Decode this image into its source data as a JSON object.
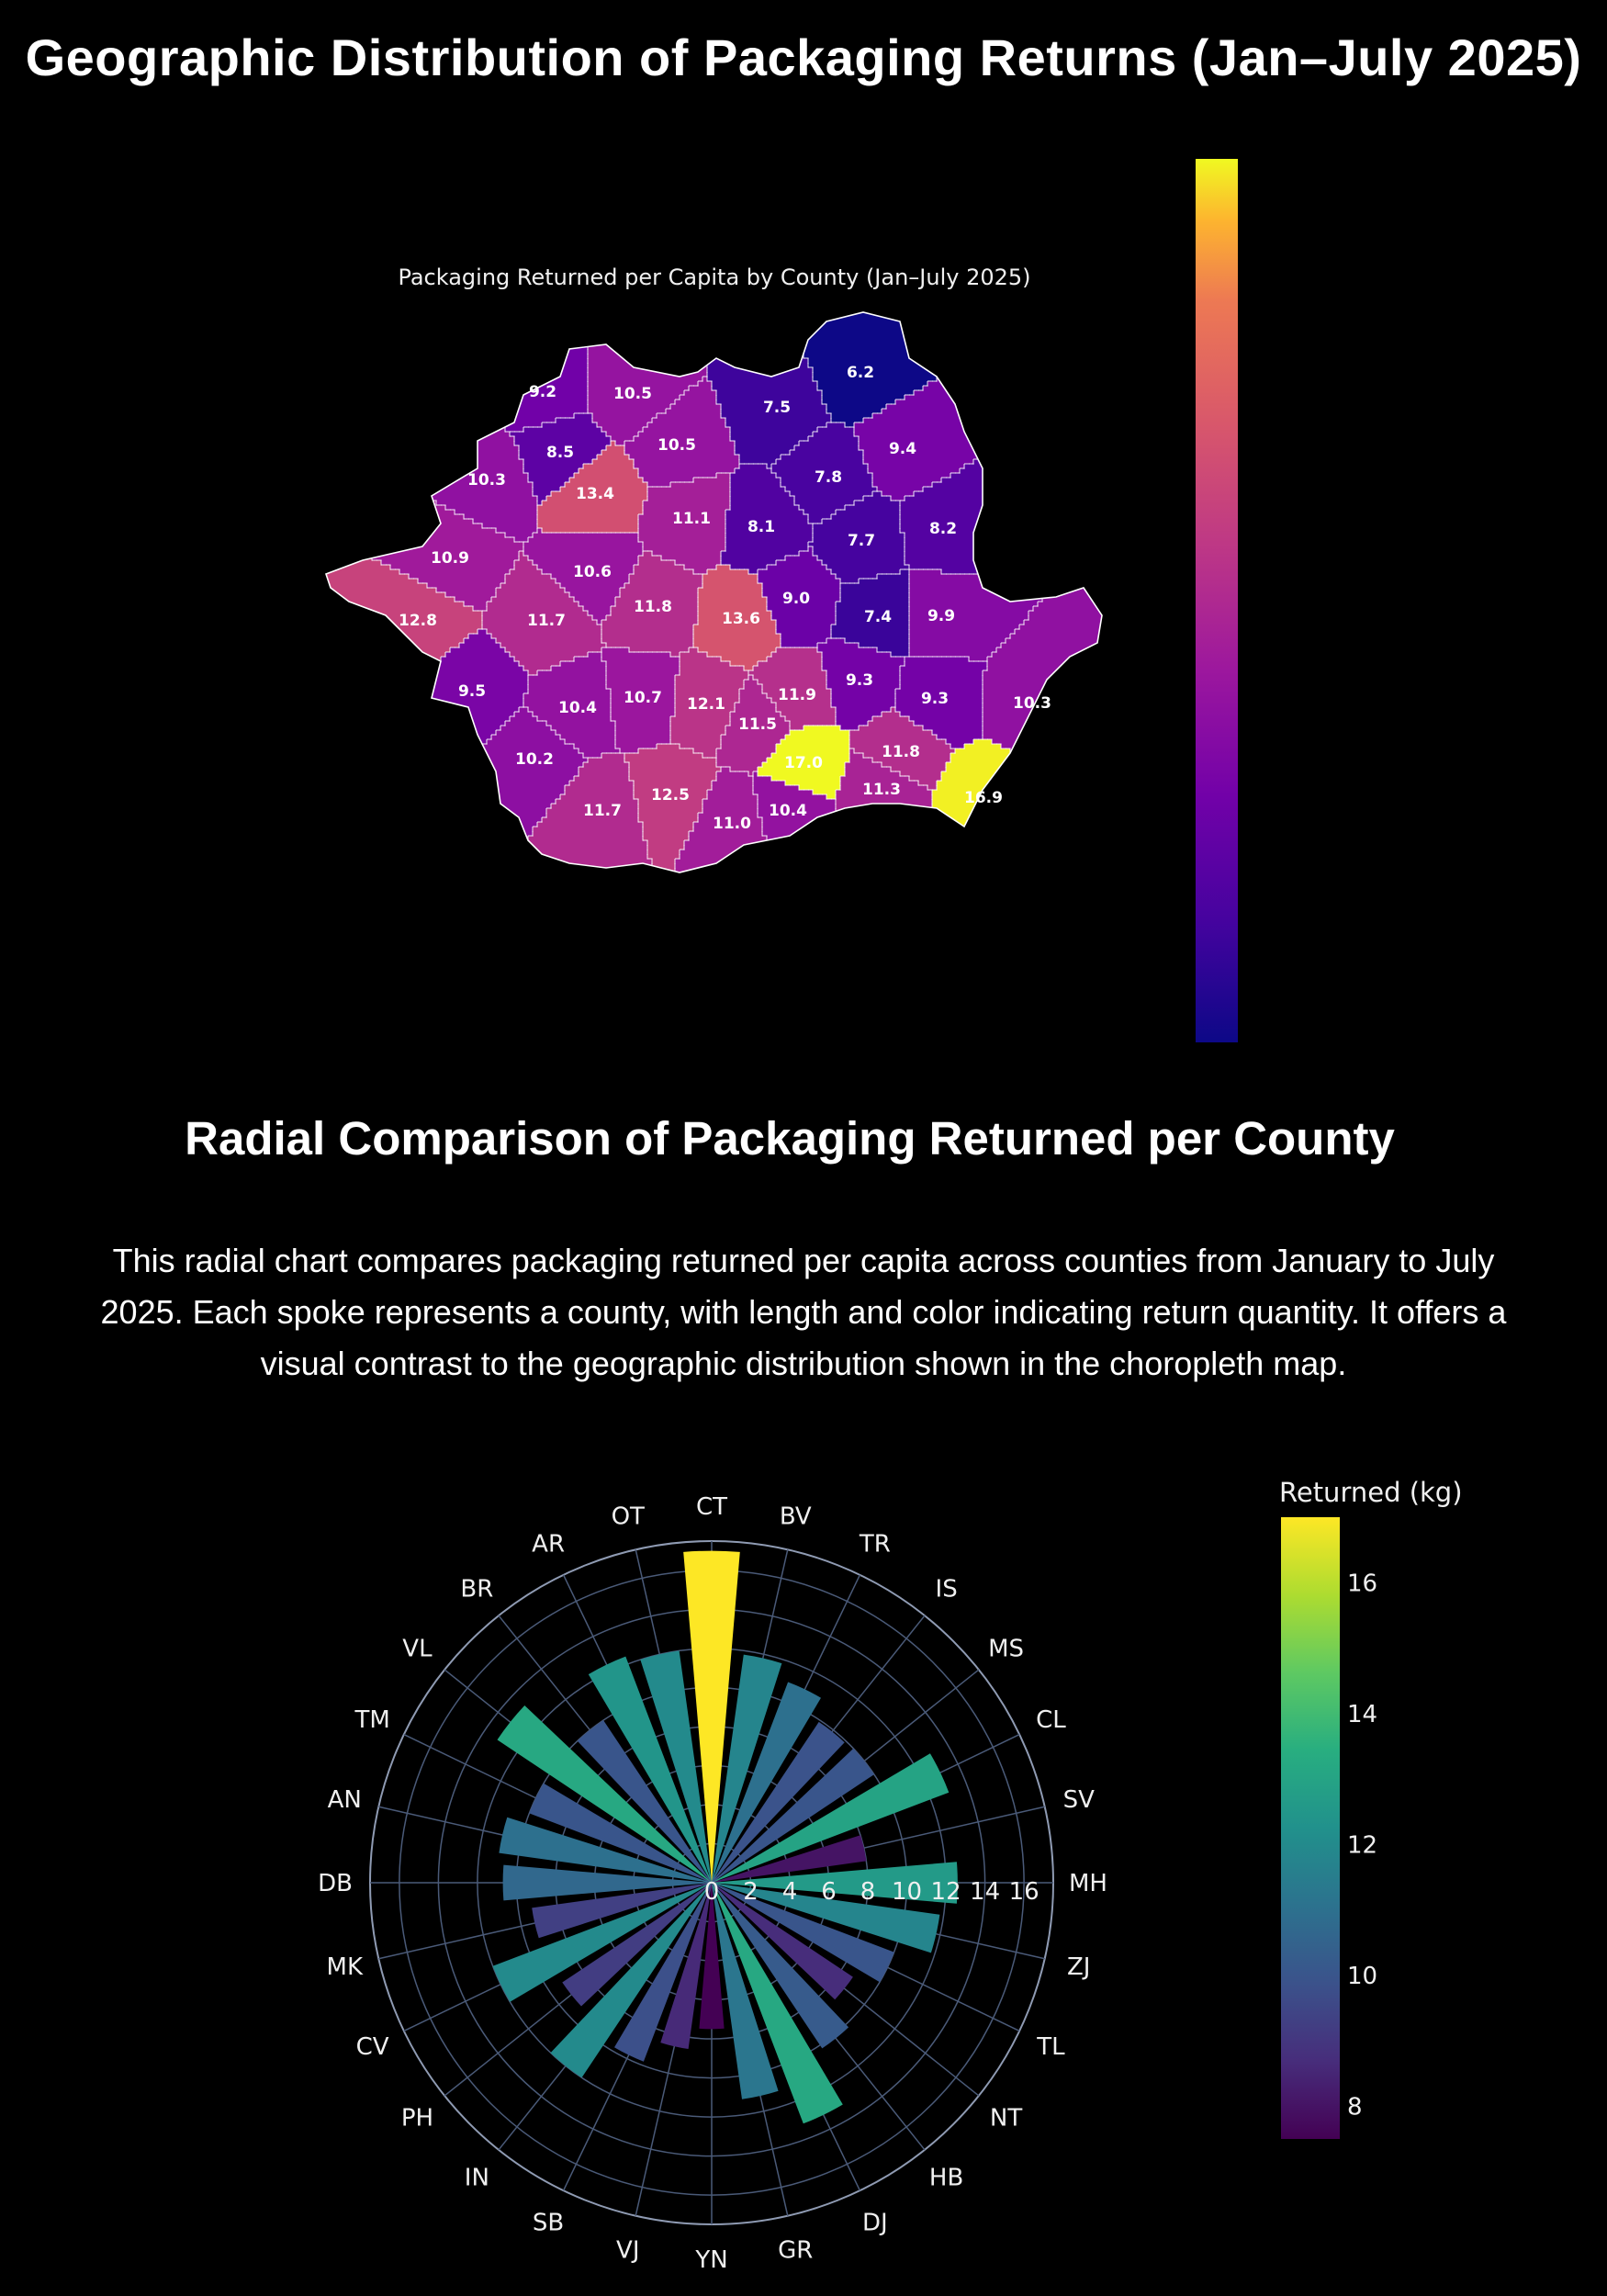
{
  "page": {
    "title": "Geographic Distribution of Packaging Returns (Jan–July 2025)",
    "section_title": "Radial Comparison of Packaging Returned per County",
    "section_description": "This radial chart compares packaging returned per capita across counties from January to July 2025. Each spoke represents a county, with length and color indicating return quantity. It offers a visual contrast to the geographic distribution shown in the choropleth map."
  },
  "chart_data": [
    {
      "type": "choropleth",
      "title": "Packaging Returned per Capita by County (Jan–July 2025)",
      "colorscale": "Plasma",
      "colorbar_ticks": [],
      "range": [
        6.2,
        17.0
      ],
      "regions": [
        {
          "label": "6.2",
          "value": 6.2
        },
        {
          "label": "9.2",
          "value": 9.2
        },
        {
          "label": "10.5",
          "value": 10.5
        },
        {
          "label": "7.5",
          "value": 7.5
        },
        {
          "label": "8.5",
          "value": 8.5
        },
        {
          "label": "10.5",
          "value": 10.5
        },
        {
          "label": "9.4",
          "value": 9.4
        },
        {
          "label": "10.3",
          "value": 10.3
        },
        {
          "label": "13.4",
          "value": 13.4
        },
        {
          "label": "7.8",
          "value": 7.8
        },
        {
          "label": "11.1",
          "value": 11.1
        },
        {
          "label": "8.1",
          "value": 8.1
        },
        {
          "label": "7.7",
          "value": 7.7
        },
        {
          "label": "8.2",
          "value": 8.2
        },
        {
          "label": "10.9",
          "value": 10.9
        },
        {
          "label": "10.6",
          "value": 10.6
        },
        {
          "label": "9.0",
          "value": 9.0
        },
        {
          "label": "12.8",
          "value": 12.8
        },
        {
          "label": "11.7",
          "value": 11.7
        },
        {
          "label": "11.8",
          "value": 11.8
        },
        {
          "label": "13.6",
          "value": 13.6
        },
        {
          "label": "7.4",
          "value": 7.4
        },
        {
          "label": "9.9",
          "value": 9.9
        },
        {
          "label": "9.5",
          "value": 9.5
        },
        {
          "label": "10.4",
          "value": 10.4
        },
        {
          "label": "10.7",
          "value": 10.7
        },
        {
          "label": "12.1",
          "value": 12.1
        },
        {
          "label": "11.9",
          "value": 11.9
        },
        {
          "label": "9.3",
          "value": 9.3
        },
        {
          "label": "9.3",
          "value": 9.3
        },
        {
          "label": "10.3",
          "value": 10.3
        },
        {
          "label": "11.5",
          "value": 11.5
        },
        {
          "label": "10.2",
          "value": 10.2
        },
        {
          "label": "17.0",
          "value": 17.0
        },
        {
          "label": "11.8",
          "value": 11.8
        },
        {
          "label": "11.3",
          "value": 11.3
        },
        {
          "label": "16.9",
          "value": 16.9
        },
        {
          "label": "11.7",
          "value": 11.7
        },
        {
          "label": "12.5",
          "value": 12.5
        },
        {
          "label": "11.0",
          "value": 11.0
        },
        {
          "label": "10.4",
          "value": 10.4
        }
      ]
    },
    {
      "type": "bar",
      "subtype": "barpolar",
      "colorscale": "Viridis",
      "colorbar_title": "Returned (kg)",
      "colorbar_ticks": [
        8,
        10,
        12,
        14,
        16
      ],
      "radial_ticks": [
        0,
        2,
        4,
        6,
        8,
        10,
        12,
        14,
        16
      ],
      "radial_range": [
        0,
        17.5
      ],
      "grid": true,
      "categories": [
        "CT",
        "BV",
        "TR",
        "IS",
        "MS",
        "CL",
        "SV",
        "MH",
        "ZJ",
        "TL",
        "NT",
        "HB",
        "DJ",
        "GR",
        "YN",
        "VJ",
        "SB",
        "IN",
        "PH",
        "CV",
        "MK",
        "DB",
        "AN",
        "TM",
        "VL",
        "BR",
        "AR",
        "OT"
      ],
      "values": [
        17.0,
        11.8,
        11.0,
        9.9,
        10.0,
        13.0,
        8.0,
        12.6,
        11.8,
        10.0,
        8.7,
        10.2,
        13.2,
        11.2,
        7.5,
        8.6,
        9.8,
        12.0,
        9.2,
        12.0,
        9.3,
        10.7,
        11.0,
        10.0,
        13.2,
        10.0,
        12.4,
        12.0
      ]
    }
  ]
}
